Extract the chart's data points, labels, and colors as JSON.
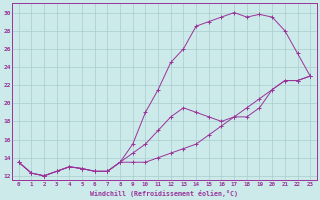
{
  "xlabel": "Windchill (Refroidissement éolien,°C)",
  "background_color": "#cceaea",
  "grid_color": "#aacccc",
  "line_color": "#993399",
  "xlim": [
    -0.5,
    23.5
  ],
  "ylim": [
    11.5,
    31.0
  ],
  "xticks": [
    0,
    1,
    2,
    3,
    4,
    5,
    6,
    7,
    8,
    9,
    10,
    11,
    12,
    13,
    14,
    15,
    16,
    17,
    18,
    19,
    20,
    21,
    22,
    23
  ],
  "yticks": [
    12,
    14,
    16,
    18,
    20,
    22,
    24,
    26,
    28,
    30
  ],
  "line1_x": [
    0,
    1,
    2,
    3,
    4,
    5,
    6,
    7,
    8,
    9,
    10,
    11,
    12,
    13,
    14,
    15,
    16,
    17,
    18,
    19,
    20,
    21,
    22,
    23
  ],
  "line1_y": [
    13.5,
    12.3,
    12.0,
    12.5,
    13.0,
    12.8,
    12.5,
    12.5,
    13.5,
    15.5,
    19.0,
    21.5,
    24.5,
    26.0,
    28.5,
    29.0,
    29.5,
    30.0,
    29.5,
    29.8,
    29.5,
    28.0,
    25.5,
    23.0
  ],
  "line2_x": [
    0,
    1,
    2,
    3,
    4,
    5,
    6,
    7,
    8,
    9,
    10,
    11,
    12,
    13,
    14,
    15,
    16,
    17,
    18,
    19,
    20,
    21,
    22,
    23
  ],
  "line2_y": [
    13.5,
    12.3,
    12.0,
    12.5,
    13.0,
    12.8,
    12.5,
    12.5,
    13.5,
    14.5,
    15.5,
    17.0,
    18.5,
    19.5,
    19.0,
    18.5,
    18.0,
    18.5,
    18.5,
    19.5,
    21.5,
    22.5,
    22.5,
    23.0
  ],
  "line3_x": [
    0,
    1,
    2,
    3,
    4,
    5,
    6,
    7,
    8,
    9,
    10,
    11,
    12,
    13,
    14,
    15,
    16,
    17,
    18,
    19,
    20,
    21,
    22,
    23
  ],
  "line3_y": [
    13.5,
    12.3,
    12.0,
    12.5,
    13.0,
    12.8,
    12.5,
    12.5,
    13.5,
    13.5,
    13.5,
    14.0,
    14.5,
    15.0,
    15.5,
    16.5,
    17.5,
    18.5,
    19.5,
    20.5,
    21.5,
    22.5,
    22.5,
    23.0
  ]
}
